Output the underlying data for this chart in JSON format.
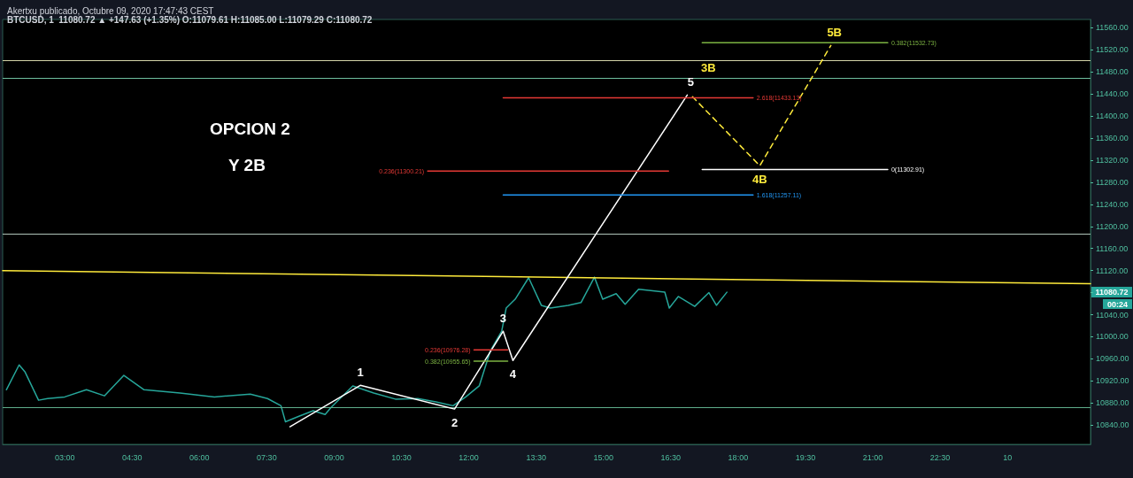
{
  "chart_data": {
    "type": "line",
    "title": "Akertxu publicado, Octubre 09, 2020 17:47:43 CEST",
    "subtitle": "BTCUSD, 1  11080.72 ▲ +147.63 (+1.35%) O:11079.61 H:11085.00 L:11079.29 C:11080.72",
    "annotations": [
      "OPCION 2",
      "Y 2B",
      "11080.72",
      "00:24",
      {
        "text": "1",
        "x": "2020-10-09T09:35",
        "y": 10912
      },
      {
        "text": "2",
        "x": "2020-10-09T11:41",
        "y": 10869
      },
      {
        "text": "3",
        "x": "2020-10-09T12:46",
        "y": 11010
      },
      {
        "text": "4",
        "x": "2020-10-09T12:59",
        "y": 10957
      },
      {
        "text": "5",
        "x": "2020-10-09T16:52",
        "y": 11438
      },
      {
        "text": "3B",
        "x": "2020-10-09T16:59",
        "y": 11435
      },
      {
        "text": "4B",
        "x": "2020-10-09T18:29",
        "y": 11310
      },
      {
        "text": "5B",
        "x": "2020-10-09T20:04",
        "y": 11528
      }
    ],
    "series": [
      {
        "color": "#26a69a",
        "x": [
          "2020-10-09T01:42",
          "2020-10-09T01:59",
          "2020-10-09T02:07",
          "2020-10-09T02:25",
          "2020-10-09T02:37",
          "2020-10-09T03:00",
          "2020-10-09T03:29",
          "2020-10-09T03:53",
          "2020-10-09T04:19",
          "2020-10-09T04:46",
          "2020-10-09T05:34",
          "2020-10-09T06:20",
          "2020-10-09T07:08",
          "2020-10-09T07:31",
          "2020-10-09T07:49",
          "2020-10-09T07:55",
          "2020-10-09T08:13",
          "2020-10-09T08:32",
          "2020-10-09T08:48",
          "2020-10-09T08:56",
          "2020-10-09T09:25",
          "2020-10-09T09:53",
          "2020-10-09T10:22",
          "2020-10-09T10:52",
          "2020-10-09T11:16",
          "2020-10-09T11:39",
          "2020-10-09T11:56",
          "2020-10-09T12:14",
          "2020-10-09T12:29",
          "2020-10-09T12:44",
          "2020-10-09T12:50",
          "2020-10-09T13:02",
          "2020-10-09T13:20",
          "2020-10-09T13:37",
          "2020-10-09T13:49",
          "2020-10-09T14:13",
          "2020-10-09T14:30",
          "2020-10-09T14:48",
          "2020-10-09T14:59",
          "2020-10-09T15:17",
          "2020-10-09T15:29",
          "2020-10-09T15:47",
          "2020-10-09T16:22",
          "2020-10-09T16:28",
          "2020-10-09T16:40",
          "2020-10-09T17:02",
          "2020-10-09T17:21",
          "2020-10-09T17:31",
          "2020-10-09T17:45"
        ],
        "values": [
          10904,
          10949,
          10936,
          10885,
          10888,
          10891,
          10904,
          10893,
          10930,
          10904,
          10898,
          10891,
          10896,
          10888,
          10875,
          10846,
          10856,
          10866,
          10859,
          10872,
          10911,
          10898,
          10887,
          10888,
          10882,
          10875,
          10891,
          10911,
          10975,
          11010,
          11052,
          11068,
          11107,
          11057,
          11052,
          11057,
          11062,
          11108,
          11068,
          11078,
          11059,
          11086,
          11081,
          11052,
          11073,
          11055,
          11080,
          11057,
          11080.72
        ]
      },
      {
        "color": "#ffeb3b",
        "x": [
          "2020-10-09T01:37",
          "2020-10-10T01:51"
        ],
        "values": [
          11120,
          11096
        ]
      },
      {
        "color": "#ffffff",
        "x": [
          "2020-10-09T08:01",
          "2020-10-09T09:35",
          "2020-10-09T11:41",
          "2020-10-09T12:46",
          "2020-10-09T12:59",
          "2020-10-09T16:52"
        ],
        "values": [
          10837,
          10912,
          10869,
          11010,
          10957,
          11438
        ]
      },
      {
        "color": "#ffeb3b",
        "line_style": "dashed",
        "x": [
          "2020-10-09T16:59",
          "2020-10-09T18:29",
          "2020-10-09T20:04"
        ],
        "values": [
          11435,
          11310,
          11528
        ]
      },
      {
        "color": "#7cb342",
        "x": [
          "2020-10-09T17:12",
          "2020-10-09T21:20"
        ],
        "values": [
          11532.73,
          11532.73
        ],
        "value_labels": [
          null,
          "0.382(11532.73)"
        ]
      },
      {
        "color": "#e53935",
        "x": [
          "2020-10-09T12:46",
          "2020-10-09T18:20"
        ],
        "values": [
          11433.13,
          11433.13
        ],
        "value_labels": [
          null,
          "2.618(11433.13)"
        ]
      },
      {
        "color": "#e53935",
        "x": [
          "2020-10-09T11:05",
          "2020-10-09T16:27"
        ],
        "values": [
          11300.21,
          11300.21
        ],
        "value_labels": [
          "0.236(11300.21)",
          null
        ]
      },
      {
        "color": "#ffffff",
        "x": [
          "2020-10-09T17:12",
          "2020-10-09T21:20"
        ],
        "values": [
          11302.91,
          11302.91
        ],
        "value_labels": [
          null,
          "0(11302.91)"
        ]
      },
      {
        "color": "#2196f3",
        "x": [
          "2020-10-09T12:46",
          "2020-10-09T18:20"
        ],
        "values": [
          11257.11,
          11257.11
        ],
        "value_labels": [
          null,
          "1.618(11257.11)"
        ]
      },
      {
        "color": "#e53935",
        "x": [
          "2020-10-09T12:07",
          "2020-10-09T12:52"
        ],
        "values": [
          10976.28,
          10976.28
        ],
        "value_labels": [
          "0.236(10976.28)",
          null
        ]
      },
      {
        "color": "#7cb342",
        "x": [
          "2020-10-09T12:07",
          "2020-10-09T12:52"
        ],
        "values": [
          10955.65,
          10955.65
        ],
        "value_labels": [
          "0.382(10955.65)",
          null
        ]
      }
    ],
    "ref_lines": [
      {
        "axis": "y",
        "value": 10872,
        "color": "#5fae8c"
      },
      {
        "axis": "y",
        "value": 11187,
        "color": "#b0c4b8"
      },
      {
        "axis": "y",
        "value": 11468,
        "color": "#6fbf9f"
      },
      {
        "axis": "y",
        "value": 11501,
        "color": "#d4d4a8"
      }
    ],
    "xlim": [
      "2020-10-09T01:37",
      "2020-10-10T01:51"
    ],
    "xticks": [
      {
        "value": "2020-10-09T03:00",
        "label": "03:00"
      },
      {
        "value": "2020-10-09T04:30",
        "label": "04:30"
      },
      {
        "value": "2020-10-09T06:00",
        "label": "06:00"
      },
      {
        "value": "2020-10-09T07:30",
        "label": "07:30"
      },
      {
        "value": "2020-10-09T09:00",
        "label": "09:00"
      },
      {
        "value": "2020-10-09T10:30",
        "label": "10:30"
      },
      {
        "value": "2020-10-09T12:00",
        "label": "12:00"
      },
      {
        "value": "2020-10-09T13:30",
        "label": "13:30"
      },
      {
        "value": "2020-10-09T15:00",
        "label": "15:00"
      },
      {
        "value": "2020-10-09T16:30",
        "label": "16:30"
      },
      {
        "value": "2020-10-09T18:00",
        "label": "18:00"
      },
      {
        "value": "2020-10-09T19:30",
        "label": "19:30"
      },
      {
        "value": "2020-10-09T21:00",
        "label": "21:00"
      },
      {
        "value": "2020-10-09T22:30",
        "label": "22:30"
      },
      {
        "value": "2020-10-10T00:00",
        "label": "10"
      }
    ],
    "ylim": [
      10805,
      11575
    ],
    "yticks": [
      {
        "value": 10840,
        "label": "10840.00"
      },
      {
        "value": 10880,
        "label": "10880.00"
      },
      {
        "value": 10920,
        "label": "10920.00"
      },
      {
        "value": 10960,
        "label": "10960.00"
      },
      {
        "value": 11000,
        "label": "11000.00"
      },
      {
        "value": 11040,
        "label": "11040.00"
      },
      {
        "value": 11080,
        "label": null
      },
      {
        "value": 11120,
        "label": "11120.00"
      },
      {
        "value": 11160,
        "label": "11160.00"
      },
      {
        "value": 11200,
        "label": "11200.00"
      },
      {
        "value": 11240,
        "label": "11240.00"
      },
      {
        "value": 11280,
        "label": "11280.00"
      },
      {
        "value": 11320,
        "label": "11320.00"
      },
      {
        "value": 11360,
        "label": "11360.00"
      },
      {
        "value": 11400,
        "label": "11400.00"
      },
      {
        "value": 11440,
        "label": "11440.00"
      },
      {
        "value": 11480,
        "label": "11480.00"
      },
      {
        "value": 11520,
        "label": "11520.00"
      },
      {
        "value": 11560,
        "label": "11560.00"
      }
    ],
    "grid": false,
    "marker": "none",
    "line_style": "solid"
  }
}
